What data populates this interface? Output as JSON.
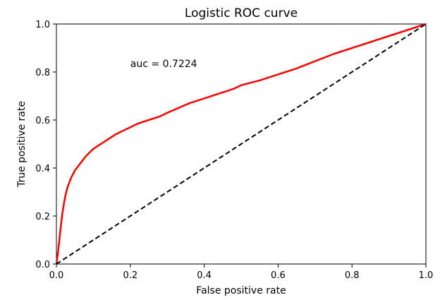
{
  "chart_data": {
    "type": "line",
    "title": "Logistic ROC curve",
    "xlabel": "False positive rate",
    "ylabel": "True positive rate",
    "xlim": [
      0.0,
      1.0
    ],
    "ylim": [
      0.0,
      1.0
    ],
    "xticks": [
      "0.0",
      "0.2",
      "0.4",
      "0.6",
      "0.8",
      "1.0"
    ],
    "yticks": [
      "0.0",
      "0.2",
      "0.4",
      "0.6",
      "0.8",
      "1.0"
    ],
    "grid": false,
    "annotation": {
      "text": "auc = 0.7224",
      "x": 0.2,
      "y": 0.82
    },
    "series": [
      {
        "color": "#ff0000",
        "style": "solid",
        "x": [
          0.0,
          0.005,
          0.01,
          0.015,
          0.02,
          0.025,
          0.03,
          0.04,
          0.05,
          0.06,
          0.07,
          0.08,
          0.09,
          0.1,
          0.12,
          0.14,
          0.16,
          0.18,
          0.2,
          0.22,
          0.25,
          0.28,
          0.3,
          0.33,
          0.36,
          0.4,
          0.44,
          0.48,
          0.5,
          0.55,
          0.6,
          0.65,
          0.7,
          0.75,
          0.8,
          0.85,
          0.9,
          0.95,
          1.0
        ],
        "y": [
          0.0,
          0.06,
          0.13,
          0.2,
          0.25,
          0.29,
          0.32,
          0.36,
          0.39,
          0.41,
          0.43,
          0.45,
          0.465,
          0.48,
          0.5,
          0.52,
          0.54,
          0.555,
          0.57,
          0.585,
          0.6,
          0.615,
          0.63,
          0.65,
          0.67,
          0.69,
          0.71,
          0.73,
          0.745,
          0.765,
          0.79,
          0.815,
          0.845,
          0.875,
          0.9,
          0.925,
          0.95,
          0.975,
          1.0
        ]
      },
      {
        "color": "#000000",
        "style": "dashed",
        "x": [
          0.0,
          1.0
        ],
        "y": [
          0.0,
          1.0
        ]
      }
    ]
  }
}
